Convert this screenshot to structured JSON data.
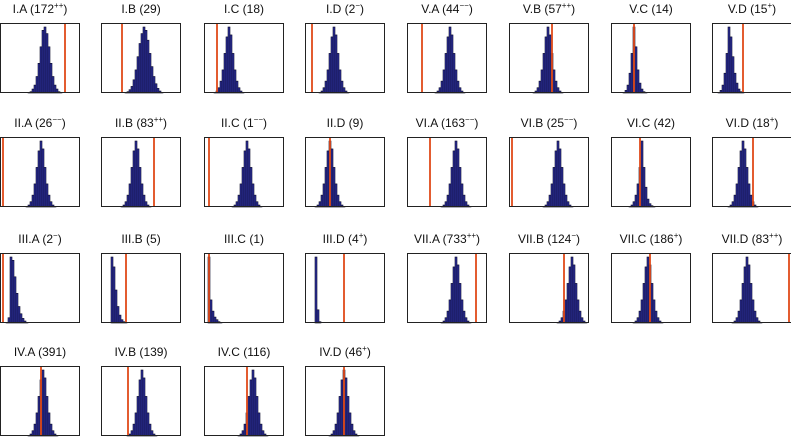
{
  "chart_data": [
    {
      "type": "bar",
      "label": "I.A",
      "count": "172",
      "sig": "++",
      "values": [
        0,
        0,
        0,
        0,
        0,
        0,
        0,
        0,
        0,
        0,
        0,
        0,
        0,
        0,
        1,
        2,
        6,
        12,
        25,
        45,
        70,
        95,
        100,
        90,
        70,
        45,
        25,
        12,
        6,
        2,
        1,
        0,
        0,
        0,
        0,
        0,
        0,
        0,
        0,
        0
      ],
      "marker": 32.5,
      "ylim": [
        0,
        100
      ]
    },
    {
      "type": "bar",
      "label": "I.B",
      "count": "29",
      "sig": "",
      "values": [
        0,
        0,
        0,
        0,
        0,
        0,
        0,
        0,
        0,
        0,
        0,
        0,
        1,
        2,
        5,
        10,
        20,
        35,
        55,
        75,
        90,
        100,
        95,
        80,
        60,
        40,
        25,
        14,
        7,
        3,
        1,
        0,
        0,
        0,
        0,
        0,
        0,
        0,
        0,
        0
      ],
      "marker": 10.5,
      "ylim": [
        0,
        100
      ]
    },
    {
      "type": "bar",
      "label": "I.C",
      "count": "18",
      "sig": "",
      "values": [
        0,
        0,
        0,
        0,
        0,
        1,
        3,
        8,
        18,
        35,
        60,
        85,
        100,
        88,
        60,
        35,
        18,
        8,
        3,
        1,
        0,
        0,
        0,
        0,
        0,
        0,
        0,
        0,
        0,
        0,
        0,
        0,
        0,
        0,
        0,
        0,
        0,
        0,
        0,
        0
      ],
      "marker": 6.5,
      "ylim": [
        0,
        100
      ]
    },
    {
      "type": "bar",
      "label": "I.D",
      "count": "2",
      "sig": "−",
      "values": [
        0,
        0,
        0,
        0,
        0,
        0,
        0,
        1,
        3,
        8,
        18,
        35,
        60,
        85,
        100,
        88,
        60,
        35,
        18,
        8,
        3,
        1,
        0,
        0,
        0,
        0,
        0,
        0,
        0,
        0,
        0,
        0,
        0,
        0,
        0,
        0,
        0,
        0,
        0,
        0
      ],
      "marker": 3.5,
      "ylim": [
        0,
        100
      ]
    },
    {
      "type": "bar",
      "label": "V.A",
      "count": "44",
      "sig": "−−",
      "values": [
        0,
        0,
        0,
        0,
        0,
        0,
        0,
        0,
        0,
        0,
        0,
        0,
        0,
        0,
        1,
        3,
        8,
        18,
        35,
        60,
        85,
        100,
        88,
        60,
        35,
        18,
        8,
        3,
        1,
        0,
        0,
        0,
        0,
        0,
        0,
        0,
        0,
        0,
        0,
        0
      ],
      "marker": 7.5,
      "ylim": [
        0,
        100
      ]
    },
    {
      "type": "bar",
      "label": "V.B",
      "count": "57",
      "sig": "++",
      "values": [
        0,
        0,
        0,
        0,
        0,
        0,
        0,
        0,
        0,
        0,
        0,
        0,
        1,
        3,
        8,
        18,
        35,
        60,
        85,
        100,
        88,
        60,
        35,
        18,
        8,
        3,
        1,
        0,
        0,
        0,
        0,
        0,
        0,
        0,
        0,
        0,
        0,
        0,
        0,
        0
      ],
      "marker": 21.5,
      "ylim": [
        0,
        100
      ]
    },
    {
      "type": "bar",
      "label": "V.C",
      "count": "14",
      "sig": "",
      "values": [
        0,
        0,
        0,
        0,
        0,
        0,
        1,
        4,
        12,
        30,
        60,
        100,
        70,
        35,
        15,
        6,
        2,
        1,
        0,
        0,
        0,
        0,
        0,
        0,
        0,
        0,
        0,
        0,
        0,
        0,
        0,
        0,
        0,
        0,
        0,
        0,
        0,
        0,
        0,
        0
      ],
      "marker": 11.5,
      "ylim": [
        0,
        100
      ]
    },
    {
      "type": "bar",
      "label": "V.D",
      "count": "15",
      "sig": "+",
      "values": [
        0,
        0,
        0,
        1,
        4,
        12,
        30,
        60,
        100,
        85,
        55,
        30,
        15,
        6,
        2,
        1,
        0,
        0,
        0,
        0,
        0,
        0,
        0,
        0,
        0,
        0,
        0,
        0,
        0,
        0,
        0,
        0,
        0,
        0,
        0,
        0,
        0,
        0,
        0,
        0
      ],
      "marker": 15.5,
      "ylim": [
        0,
        100
      ]
    },
    {
      "type": "bar",
      "label": "II.A",
      "count": "26",
      "sig": "−−",
      "values": [
        0,
        0,
        0,
        0,
        0,
        0,
        0,
        0,
        0,
        0,
        0,
        0,
        0,
        1,
        3,
        8,
        18,
        35,
        60,
        85,
        100,
        88,
        60,
        35,
        18,
        8,
        3,
        1,
        0,
        0,
        0,
        0,
        0,
        0,
        0,
        0,
        0,
        0,
        0,
        0
      ],
      "marker": 1.5,
      "ylim": [
        0,
        100
      ]
    },
    {
      "type": "bar",
      "label": "II.B",
      "count": "83",
      "sig": "++",
      "values": [
        0,
        0,
        0,
        0,
        0,
        0,
        0,
        0,
        0,
        0,
        1,
        3,
        8,
        18,
        35,
        60,
        85,
        100,
        88,
        60,
        35,
        18,
        8,
        3,
        1,
        0,
        0,
        0,
        0,
        0,
        0,
        0,
        0,
        0,
        0,
        0,
        0,
        0,
        0,
        0
      ],
      "marker": 26.5,
      "ylim": [
        0,
        100
      ]
    },
    {
      "type": "bar",
      "label": "II.C",
      "count": "1",
      "sig": "−−",
      "values": [
        0,
        0,
        0,
        0,
        0,
        0,
        0,
        0,
        0,
        0,
        0,
        0,
        0,
        0,
        1,
        3,
        8,
        18,
        35,
        60,
        85,
        100,
        88,
        60,
        35,
        18,
        8,
        3,
        1,
        0,
        0,
        0,
        0,
        0,
        0,
        0,
        0,
        0,
        0,
        0
      ],
      "marker": 2.5,
      "ylim": [
        0,
        100
      ]
    },
    {
      "type": "bar",
      "label": "II.D",
      "count": "9",
      "sig": "",
      "values": [
        0,
        0,
        0,
        0,
        0,
        1,
        3,
        8,
        18,
        35,
        60,
        85,
        100,
        88,
        60,
        35,
        18,
        8,
        3,
        1,
        0,
        0,
        0,
        0,
        0,
        0,
        0,
        0,
        0,
        0,
        0,
        0,
        0,
        0,
        0,
        0,
        0,
        0,
        0,
        0
      ],
      "marker": 12.5,
      "ylim": [
        0,
        100
      ]
    },
    {
      "type": "bar",
      "label": "VI.A",
      "count": "163",
      "sig": "−−",
      "values": [
        0,
        0,
        0,
        0,
        0,
        0,
        0,
        0,
        0,
        0,
        0,
        0,
        0,
        0,
        0,
        0,
        0,
        1,
        3,
        8,
        18,
        35,
        60,
        85,
        100,
        88,
        60,
        35,
        18,
        8,
        3,
        1,
        0,
        0,
        0,
        0,
        0,
        0,
        0,
        0
      ],
      "marker": 11.5,
      "ylim": [
        0,
        100
      ]
    },
    {
      "type": "bar",
      "label": "VI.B",
      "count": "25",
      "sig": "−−",
      "values": [
        0,
        0,
        0,
        0,
        0,
        0,
        0,
        0,
        0,
        0,
        0,
        0,
        0,
        0,
        0,
        0,
        0,
        1,
        3,
        8,
        18,
        35,
        60,
        85,
        100,
        88,
        60,
        35,
        18,
        8,
        3,
        1,
        0,
        0,
        0,
        0,
        0,
        0,
        0,
        0
      ],
      "marker": 1.5,
      "ylim": [
        0,
        100
      ]
    },
    {
      "type": "bar",
      "label": "VI.C",
      "count": "42",
      "sig": "",
      "values": [
        0,
        0,
        0,
        0,
        0,
        0,
        0,
        0,
        0,
        1,
        3,
        8,
        18,
        35,
        60,
        100,
        60,
        30,
        12,
        5,
        2,
        1,
        0,
        0,
        0,
        0,
        0,
        0,
        0,
        0,
        0,
        0,
        0,
        0,
        0,
        0,
        0,
        0,
        0,
        0
      ],
      "marker": 14.5,
      "ylim": [
        0,
        100
      ]
    },
    {
      "type": "bar",
      "label": "VI.D",
      "count": "18",
      "sig": "+",
      "values": [
        0,
        0,
        0,
        0,
        0,
        0,
        0,
        0,
        1,
        3,
        8,
        18,
        35,
        60,
        85,
        100,
        88,
        60,
        35,
        18,
        8,
        3,
        1,
        0,
        0,
        0,
        0,
        0,
        0,
        0,
        0,
        0,
        0,
        0,
        0,
        0,
        0,
        0,
        0,
        0
      ],
      "marker": 20.5,
      "ylim": [
        0,
        100
      ]
    },
    {
      "type": "bar",
      "label": "III.A",
      "count": "2",
      "sig": "−",
      "values": [
        0,
        0,
        0,
        1,
        8,
        100,
        95,
        70,
        45,
        25,
        14,
        7,
        3,
        1,
        0,
        0,
        0,
        0,
        0,
        0,
        0,
        0,
        0,
        0,
        0,
        0,
        0,
        0,
        0,
        0,
        0,
        0,
        0,
        0,
        0,
        0,
        0,
        0,
        0,
        0
      ],
      "marker": 1.5,
      "ylim": [
        0,
        100
      ]
    },
    {
      "type": "bar",
      "label": "III.B",
      "count": "5",
      "sig": "",
      "values": [
        0,
        0,
        0,
        0,
        0,
        100,
        85,
        50,
        25,
        12,
        5,
        2,
        1,
        0,
        0,
        0,
        0,
        0,
        0,
        0,
        0,
        0,
        0,
        0,
        0,
        0,
        0,
        0,
        0,
        0,
        0,
        0,
        0,
        0,
        0,
        0,
        0,
        0,
        0,
        0
      ],
      "marker": 12.5,
      "ylim": [
        0,
        100
      ]
    },
    {
      "type": "bar",
      "label": "III.C",
      "count": "1",
      "sig": "",
      "values": [
        0,
        0,
        100,
        35,
        18,
        9,
        5,
        2,
        1,
        0,
        0,
        0,
        0,
        0,
        0,
        0,
        0,
        0,
        0,
        0,
        0,
        0,
        0,
        0,
        0,
        0,
        0,
        0,
        0,
        0,
        0,
        0,
        0,
        0,
        0,
        0,
        0,
        0,
        0,
        0
      ],
      "marker": 2.5,
      "ylim": [
        0,
        100
      ]
    },
    {
      "type": "bar",
      "label": "III.D",
      "count": "4",
      "sig": "+",
      "values": [
        0,
        0,
        0,
        0,
        0,
        100,
        20,
        2,
        0,
        0,
        0,
        0,
        0,
        0,
        0,
        0,
        0,
        0,
        0,
        0,
        0,
        0,
        0,
        0,
        0,
        0,
        0,
        0,
        0,
        0,
        0,
        0,
        0,
        0,
        0,
        0,
        0,
        0,
        0,
        0
      ],
      "marker": 19.5,
      "ylim": [
        0,
        100
      ]
    },
    {
      "type": "bar",
      "label": "VII.A",
      "count": "733",
      "sig": "++",
      "values": [
        0,
        0,
        0,
        0,
        0,
        0,
        0,
        0,
        0,
        0,
        0,
        0,
        0,
        0,
        0,
        0,
        0,
        1,
        3,
        8,
        18,
        35,
        60,
        85,
        100,
        88,
        60,
        35,
        18,
        8,
        3,
        1,
        0,
        0,
        0,
        0,
        0,
        0,
        0,
        0
      ],
      "marker": 34.5,
      "ylim": [
        0,
        100
      ]
    },
    {
      "type": "bar",
      "label": "VII.B",
      "count": "124",
      "sig": "−",
      "values": [
        0,
        0,
        0,
        0,
        0,
        0,
        0,
        0,
        0,
        0,
        0,
        0,
        0,
        0,
        0,
        0,
        0,
        0,
        0,
        0,
        0,
        0,
        0,
        0,
        1,
        3,
        8,
        18,
        35,
        60,
        85,
        100,
        88,
        60,
        35,
        18,
        8,
        3,
        1,
        0
      ],
      "marker": 27.5,
      "ylim": [
        0,
        100
      ]
    },
    {
      "type": "bar",
      "label": "VII.C",
      "count": "186",
      "sig": "+",
      "values": [
        0,
        0,
        0,
        0,
        0,
        0,
        0,
        0,
        0,
        0,
        0,
        1,
        3,
        8,
        18,
        35,
        60,
        85,
        100,
        88,
        60,
        35,
        18,
        8,
        3,
        1,
        0,
        0,
        0,
        0,
        0,
        0,
        0,
        0,
        0,
        0,
        0,
        0,
        0,
        0
      ],
      "marker": 19.5,
      "ylim": [
        0,
        100
      ]
    },
    {
      "type": "bar",
      "label": "VII.D",
      "count": "83",
      "sig": "++",
      "values": [
        0,
        0,
        0,
        0,
        0,
        0,
        0,
        0,
        0,
        0,
        1,
        3,
        8,
        18,
        35,
        60,
        85,
        100,
        88,
        60,
        35,
        18,
        8,
        3,
        1,
        0,
        0,
        0,
        0,
        0,
        0,
        0,
        0,
        0,
        0,
        0,
        0,
        0,
        0,
        0
      ],
      "marker": 38.5,
      "ylim": [
        0,
        100
      ]
    },
    {
      "type": "bar",
      "label": "IV.A",
      "count": "391",
      "sig": "",
      "values": [
        0,
        0,
        0,
        0,
        0,
        0,
        0,
        0,
        0,
        0,
        0,
        0,
        0,
        0,
        1,
        3,
        8,
        18,
        35,
        60,
        85,
        100,
        88,
        60,
        35,
        18,
        8,
        3,
        1,
        0,
        0,
        0,
        0,
        0,
        0,
        0,
        0,
        0,
        0,
        0
      ],
      "marker": 20.5,
      "ylim": [
        0,
        100
      ]
    },
    {
      "type": "bar",
      "label": "IV.B",
      "count": "139",
      "sig": "",
      "values": [
        0,
        0,
        0,
        0,
        0,
        0,
        0,
        0,
        0,
        0,
        0,
        0,
        0,
        1,
        3,
        8,
        18,
        35,
        60,
        85,
        100,
        88,
        60,
        35,
        18,
        8,
        3,
        1,
        0,
        0,
        0,
        0,
        0,
        0,
        0,
        0,
        0,
        0,
        0,
        0
      ],
      "marker": 13.5,
      "ylim": [
        0,
        100
      ]
    },
    {
      "type": "bar",
      "label": "IV.C",
      "count": "116",
      "sig": "",
      "values": [
        0,
        0,
        0,
        0,
        0,
        0,
        0,
        0,
        0,
        0,
        0,
        0,
        0,
        0,
        0,
        0,
        0,
        1,
        3,
        8,
        18,
        35,
        60,
        85,
        100,
        88,
        60,
        35,
        18,
        8,
        3,
        1,
        0,
        0,
        0,
        0,
        0,
        0,
        0,
        0
      ],
      "marker": 21.5,
      "ylim": [
        0,
        100
      ]
    },
    {
      "type": "bar",
      "label": "IV.D",
      "count": "46",
      "sig": "+",
      "values": [
        0,
        0,
        0,
        0,
        0,
        0,
        0,
        0,
        0,
        0,
        0,
        0,
        1,
        3,
        8,
        18,
        35,
        60,
        85,
        100,
        88,
        60,
        35,
        18,
        8,
        3,
        1,
        0,
        0,
        0,
        0,
        0,
        0,
        0,
        0,
        0,
        0,
        0,
        0,
        0
      ],
      "marker": 19.5,
      "ylim": [
        0,
        100
      ]
    }
  ],
  "colors": {
    "bar": "#2b2e9c",
    "bar_edge": "#0c0c2a",
    "marker": "#e04a1a",
    "frame": "#222222"
  }
}
